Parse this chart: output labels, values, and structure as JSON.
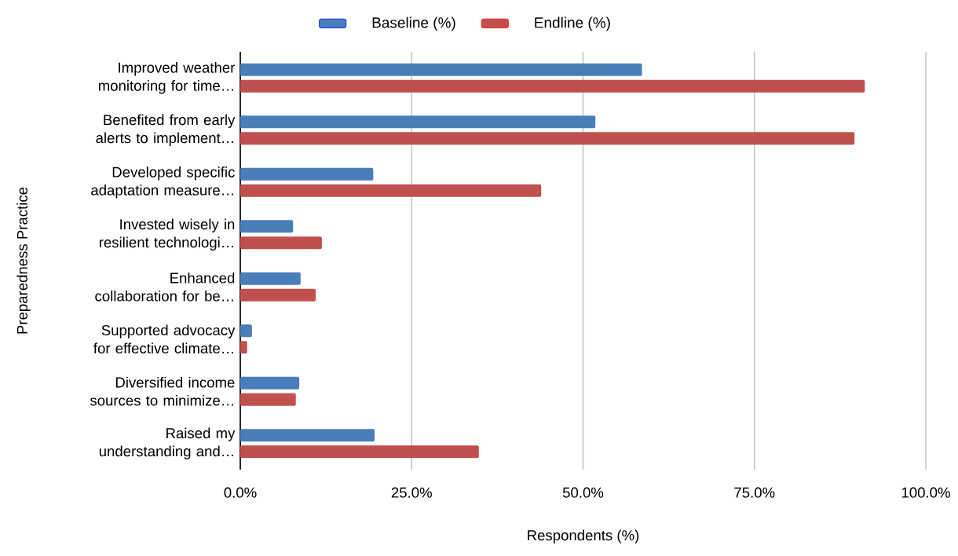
{
  "chart_data": {
    "type": "bar",
    "orientation": "horizontal",
    "ylabel": "Preparedness Practice",
    "xlabel": "Respondents (%)",
    "categories": [
      "Improved weather monitoring for time…",
      "Benefited from early alerts to implement…",
      "Developed specific adaptation measure…",
      "Invested wisely in resilient technologi…",
      "Enhanced collaboration for be…",
      "Supported advocacy for effective climate…",
      "Diversified income sources to minimize…",
      "Raised my understanding and…"
    ],
    "series": [
      {
        "name": "Baseline (%)",
        "color": "#4a7ebb",
        "values": [
          58.6,
          51.8,
          19.4,
          7.7,
          8.8,
          1.7,
          8.6,
          19.6
        ]
      },
      {
        "name": "Endline (%)",
        "color": "#c0504d",
        "values": [
          91.1,
          89.6,
          43.9,
          11.9,
          11.0,
          1.0,
          8.1,
          34.8
        ]
      }
    ],
    "xlim": [
      0,
      100
    ],
    "xticks": [
      {
        "value": 0,
        "label": "0.0%"
      },
      {
        "value": 25,
        "label": "25.0%"
      },
      {
        "value": 50,
        "label": "50.0%"
      },
      {
        "value": 75,
        "label": "75.0%"
      },
      {
        "value": 100,
        "label": "100.0%"
      }
    ],
    "grid": "x",
    "legend": "top"
  }
}
